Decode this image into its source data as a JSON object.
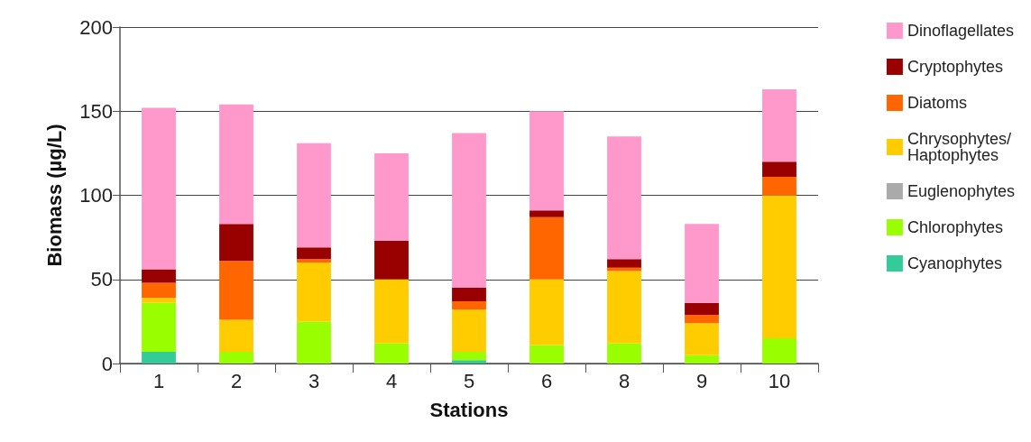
{
  "chart_data": {
    "type": "bar",
    "stacked": true,
    "xlabel": "Stations",
    "ylabel": "Biomass (µg/L)",
    "categories": [
      "1",
      "2",
      "3",
      "4",
      "5",
      "6",
      "8",
      "9",
      "10"
    ],
    "series": [
      {
        "name": "Cyanophytes",
        "color": "#33cc99",
        "values": [
          7,
          0,
          0,
          0,
          2,
          0,
          0,
          0,
          0
        ]
      },
      {
        "name": "Chlorophytes",
        "color": "#99ff00",
        "values": [
          29,
          7,
          25,
          12,
          5,
          11,
          12,
          5,
          15
        ]
      },
      {
        "name": "Euglenophytes",
        "color": "#aaaaaa",
        "values": [
          0,
          0,
          0,
          0,
          0,
          0,
          0,
          0,
          0
        ]
      },
      {
        "name": "Chrysophytes/Haptophytes",
        "color": "#ffcc00",
        "values": [
          3,
          19,
          35,
          38,
          25,
          39,
          43,
          19,
          85
        ]
      },
      {
        "name": "Diatoms",
        "color": "#ff6600",
        "values": [
          9,
          35,
          2,
          0,
          5,
          37,
          2,
          5,
          11
        ]
      },
      {
        "name": "Cryptophytes",
        "color": "#990000",
        "values": [
          8,
          22,
          7,
          23,
          8,
          4,
          5,
          7,
          9
        ]
      },
      {
        "name": "Dinoflagellates",
        "color": "#ff99cc",
        "values": [
          96,
          71,
          62,
          52,
          92,
          59,
          73,
          47,
          43
        ]
      }
    ],
    "ylim": [
      0,
      200
    ],
    "yticks": [
      0,
      50,
      100,
      150,
      200
    ],
    "grid": "y",
    "legend": "right"
  }
}
